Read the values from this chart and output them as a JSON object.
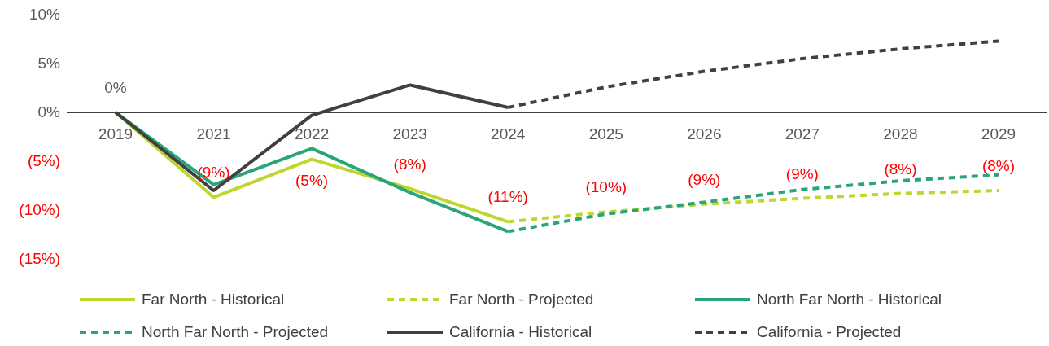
{
  "chart_data": {
    "type": "line",
    "categories": [
      "2019",
      "2021",
      "2022",
      "2023",
      "2024",
      "2025",
      "2026",
      "2027",
      "2028",
      "2029"
    ],
    "series": [
      {
        "name": "Far North - Historical",
        "color": "#bfd62f",
        "line_style": "solid",
        "values": [
          0,
          -8.7,
          -4.8,
          -7.8,
          -11.2,
          null,
          null,
          null,
          null,
          null
        ],
        "value_labels": [
          "0%",
          "(9%)",
          "(5%)",
          "(8%)",
          "(11%)",
          null,
          null,
          null,
          null,
          null
        ]
      },
      {
        "name": "Far North - Projected",
        "color": "#bfd62f",
        "line_style": "dashed",
        "values": [
          null,
          null,
          null,
          null,
          -11.2,
          -10.2,
          -9.4,
          -8.8,
          -8.3,
          -8.0
        ],
        "value_labels": [
          null,
          null,
          null,
          null,
          null,
          "(10%)",
          "(9%)",
          "(9%)",
          "(8%)",
          "(8%)"
        ]
      },
      {
        "name": "North Far North - Historical",
        "color": "#2aa57a",
        "line_style": "solid",
        "values": [
          0,
          -7.4,
          -3.7,
          -8.2,
          -12.2,
          null,
          null,
          null,
          null,
          null
        ]
      },
      {
        "name": "North Far North - Projected",
        "color": "#2aa57a",
        "line_style": "dashed",
        "values": [
          null,
          null,
          null,
          null,
          -12.2,
          -10.4,
          -9.2,
          -7.9,
          -7.0,
          -6.4
        ]
      },
      {
        "name": "California - Historical",
        "color": "#404040",
        "line_style": "solid",
        "values": [
          0,
          -8.0,
          -0.3,
          2.8,
          0.5,
          null,
          null,
          null,
          null,
          null
        ]
      },
      {
        "name": "California - Projected",
        "color": "#404040",
        "line_style": "dashed",
        "values": [
          null,
          null,
          null,
          null,
          0.5,
          2.6,
          4.2,
          5.5,
          6.5,
          7.3
        ]
      }
    ],
    "ylim": [
      -15,
      10
    ],
    "yticks": [
      {
        "value": 10,
        "label": "10%"
      },
      {
        "value": 5,
        "label": "5%"
      },
      {
        "value": 0,
        "label": "0%"
      },
      {
        "value": -5,
        "label": "(5%)"
      },
      {
        "value": -10,
        "label": "(10%)"
      },
      {
        "value": -15,
        "label": "(15%)"
      }
    ],
    "grid": false,
    "legend": "bottom",
    "marker": "none"
  }
}
